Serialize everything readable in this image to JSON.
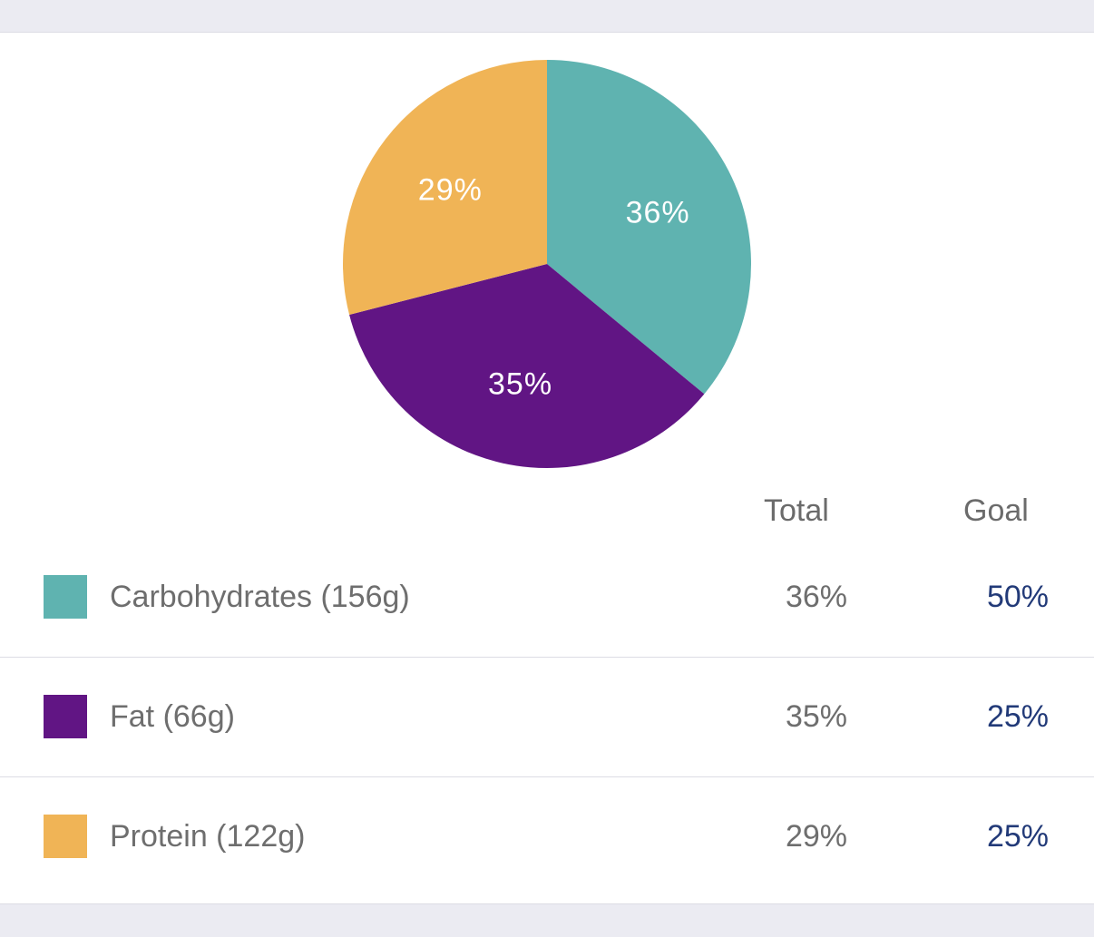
{
  "table": {
    "header_total": "Total",
    "header_goal": "Goal",
    "rows": [
      {
        "label": "Carbohydrates (156g)",
        "total": "36%",
        "goal": "50%",
        "color": "#5fb3b0"
      },
      {
        "label": "Fat (66g)",
        "total": "35%",
        "goal": "25%",
        "color": "#611584"
      },
      {
        "label": "Protein (122g)",
        "total": "29%",
        "goal": "25%",
        "color": "#f0b456"
      }
    ]
  },
  "chart_data": {
    "type": "pie",
    "categories": [
      "Carbohydrates (156g)",
      "Fat (66g)",
      "Protein (122g)"
    ],
    "values": [
      36,
      35,
      29
    ],
    "labels": [
      "36%",
      "35%",
      "29%"
    ],
    "colors": [
      "#5fb3b0",
      "#611584",
      "#f0b456"
    ]
  }
}
